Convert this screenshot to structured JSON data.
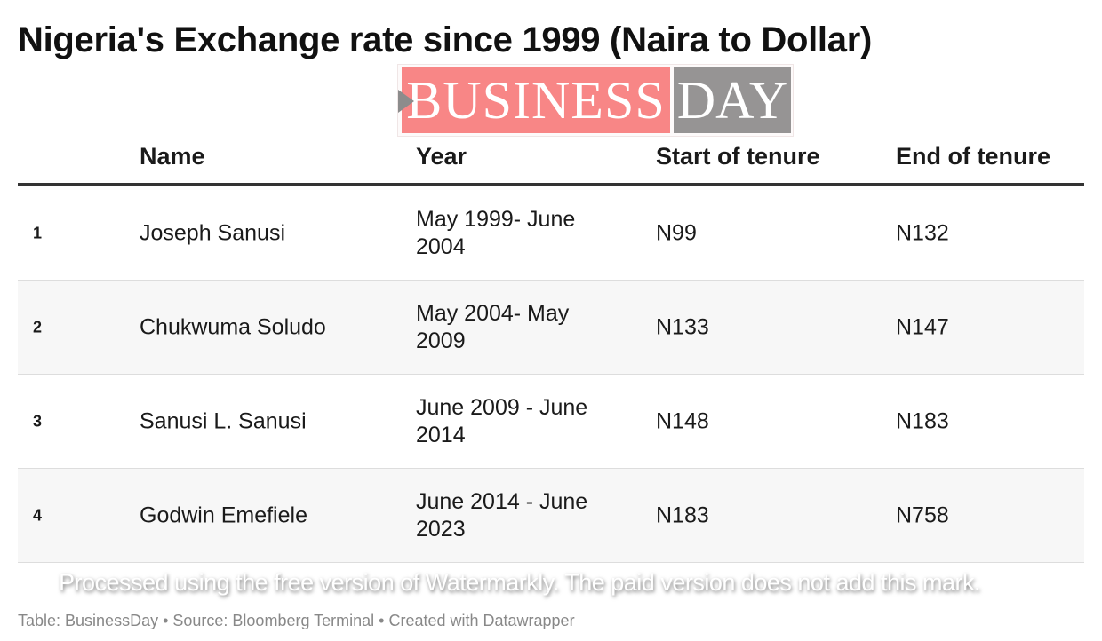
{
  "title": "Nigeria's Exchange rate since 1999 (Naira to Dollar)",
  "logo": {
    "left": "BUSINESS",
    "right": "DAY"
  },
  "columns": [
    "",
    "Name",
    "Year",
    "Start of tenure",
    "End of tenure"
  ],
  "rows": [
    {
      "n": "1",
      "name": "Joseph Sanusi",
      "year": "May 1999- June 2004",
      "start": "N99",
      "end": "N132"
    },
    {
      "n": "2",
      "name": "Chukwuma Soludo",
      "year": "May 2004- May 2009",
      "start": "N133",
      "end": "N147"
    },
    {
      "n": "3",
      "name": "Sanusi L. Sanusi",
      "year": "June 2009 - June 2014",
      "start": "N148",
      "end": "N183"
    },
    {
      "n": "4",
      "name": "Godwin Emefiele",
      "year": "June 2014 - June 2023",
      "start": "N183",
      "end": "N758"
    }
  ],
  "footer": "Table: BusinessDay • Source: Bloomberg Terminal • Created with Datawrapper",
  "watermark": "Processed using the free version of Watermarkly. The paid version does not add this mark."
}
